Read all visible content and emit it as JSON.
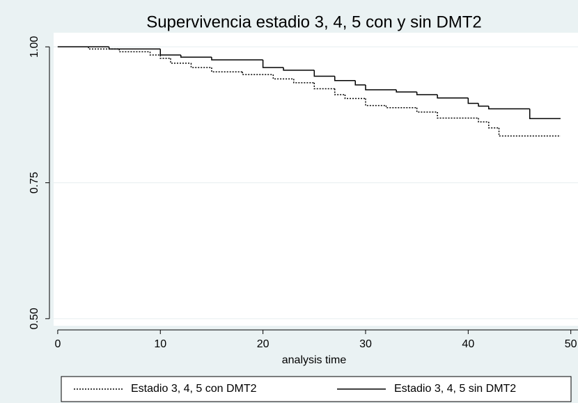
{
  "chart_data": {
    "type": "step",
    "title": "Supervivencia estadio 3, 4, 5 con y sin DMT2",
    "x_label": "analysis time",
    "xlim": [
      -0.4,
      50.7
    ],
    "ylim": [
      0.487,
      1.026
    ],
    "xticks": [
      0,
      10,
      20,
      30,
      40,
      50
    ],
    "yticks": [
      {
        "value": 0.5,
        "label": "0.50"
      },
      {
        "value": 0.75,
        "label": "0.75"
      },
      {
        "value": 1.0,
        "label": "1.00"
      }
    ],
    "grid": true,
    "series": [
      {
        "name": "Estadio 3, 4, 5 con DMT2",
        "color": "#000000",
        "dash": "dotted",
        "x": [
          0,
          3,
          6,
          9,
          10,
          11,
          13,
          15,
          18,
          21,
          23,
          25,
          27,
          28,
          30,
          32,
          35,
          37,
          41,
          42,
          43,
          49
        ],
        "values": [
          1.0,
          0.996,
          0.991,
          0.985,
          0.979,
          0.97,
          0.962,
          0.954,
          0.949,
          0.941,
          0.934,
          0.923,
          0.912,
          0.905,
          0.892,
          0.888,
          0.88,
          0.869,
          0.862,
          0.851,
          0.836,
          0.836
        ]
      },
      {
        "name": "Estadio 3, 4, 5 sin DMT2",
        "color": "#000000",
        "dash": "solid",
        "x": [
          0,
          5,
          10,
          12,
          15,
          20,
          22,
          25,
          27,
          29,
          30,
          33,
          35,
          37,
          40,
          41,
          42,
          46,
          49
        ],
        "values": [
          1.0,
          0.996,
          0.985,
          0.981,
          0.976,
          0.962,
          0.957,
          0.946,
          0.938,
          0.93,
          0.921,
          0.917,
          0.912,
          0.906,
          0.896,
          0.891,
          0.886,
          0.868,
          0.868
        ]
      }
    ]
  }
}
